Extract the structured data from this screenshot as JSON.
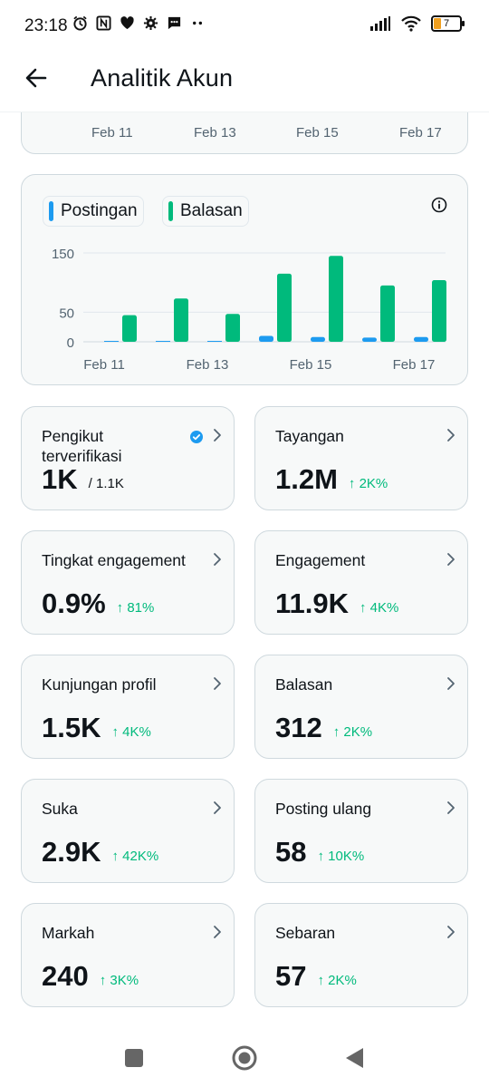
{
  "status_bar": {
    "time": "23:18",
    "battery_level": "7",
    "icons_left": [
      "alarm-icon",
      "nfc-icon",
      "heart-icon",
      "settings-icon",
      "message-icon",
      "more-dots-icon"
    ],
    "icons_right": [
      "signal-icon",
      "wifi-icon",
      "battery-icon"
    ]
  },
  "header": {
    "title": "Analitik Akun",
    "back_icon": "arrow-left-icon"
  },
  "top_chart": {
    "x_labels": [
      "Feb 11",
      "Feb 13",
      "Feb 15",
      "Feb 17"
    ]
  },
  "chart_data": {
    "type": "bar",
    "categories": [
      "Feb 11",
      "Feb 12",
      "Feb 13",
      "Feb 14",
      "Feb 15",
      "Feb 16",
      "Feb 17"
    ],
    "x_tick_labels": [
      "Feb 11",
      "Feb 13",
      "Feb 15",
      "Feb 17"
    ],
    "series": [
      {
        "name": "Postingan",
        "color": "#1d9bf0",
        "values": [
          0,
          1,
          0,
          10,
          8,
          7,
          8
        ]
      },
      {
        "name": "Balasan",
        "color": "#00ba7c",
        "values": [
          45,
          73,
          47,
          115,
          145,
          95,
          104
        ]
      }
    ],
    "y_ticks": [
      0,
      50,
      150
    ],
    "ylim": [
      0,
      150
    ],
    "grid": true,
    "legend_position": "top-left"
  },
  "colors": {
    "accent_green": "#00ba7c",
    "accent_blue": "#1d9bf0",
    "card_bg": "#f7f9f9",
    "border": "#cfd9de"
  },
  "stats": [
    {
      "label": "Pengikut terverifikasi",
      "value": "1K",
      "sub": "/ 1.1K",
      "change": "",
      "verified": true
    },
    {
      "label": "Tayangan",
      "value": "1.2M",
      "change": "↑ 2K%"
    },
    {
      "label": "Tingkat engagement",
      "value": "0.9%",
      "change": "↑ 81%"
    },
    {
      "label": "Engagement",
      "value": "11.9K",
      "change": "↑ 4K%"
    },
    {
      "label": "Kunjungan profil",
      "value": "1.5K",
      "change": "↑ 4K%"
    },
    {
      "label": "Balasan",
      "value": "312",
      "change": "↑ 2K%"
    },
    {
      "label": "Suka",
      "value": "2.9K",
      "change": "↑ 42K%"
    },
    {
      "label": "Posting ulang",
      "value": "58",
      "change": "↑ 10K%"
    },
    {
      "label": "Markah",
      "value": "240",
      "change": "↑ 3K%"
    },
    {
      "label": "Sebaran",
      "value": "57",
      "change": "↑ 2K%"
    }
  ],
  "nav": {
    "buttons": [
      "recent-apps-icon",
      "home-icon",
      "back-icon"
    ]
  }
}
